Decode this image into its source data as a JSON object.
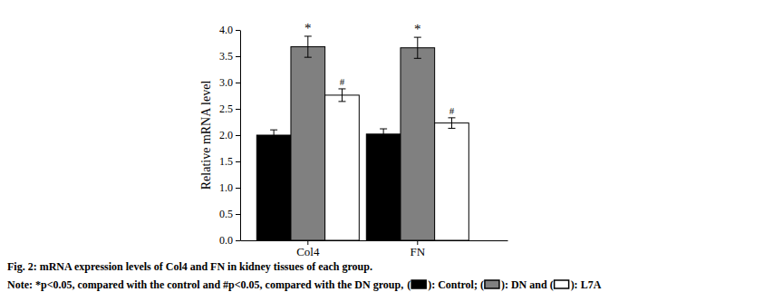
{
  "chart_data": {
    "type": "bar",
    "caption": "Fig. 2: mRNA expression levels of Col4 and FN in kidney tissues of each group.",
    "note": "Note: *p<0.05, compared with the control and #p<0.05, compared with the DN group,",
    "legend_punctuation": {
      "open": "(",
      "close": "): ",
      "separators": [
        "; ",
        " and "
      ]
    },
    "y_label": "Relative mRNA level",
    "categories": [
      "Col4",
      "FN"
    ],
    "series": [
      {
        "name": "Control",
        "color": "#000000",
        "values": [
          2.0,
          2.02
        ],
        "errors": [
          0.1,
          0.1
        ]
      },
      {
        "name": "DN",
        "color": "#808080",
        "values": [
          3.68,
          3.66
        ],
        "errors": [
          0.2,
          0.2
        ],
        "significance": [
          "*",
          "*"
        ]
      },
      {
        "name": "L7A",
        "color": "#ffffff",
        "values": [
          2.76,
          2.23
        ],
        "errors": [
          0.12,
          0.1
        ],
        "significance": [
          "#",
          "#"
        ]
      }
    ],
    "ylim": [
      0,
      4.0
    ],
    "yticks": [
      {
        "value": 0,
        "label": "0.0"
      },
      {
        "value": 0.5,
        "label": "0.5"
      },
      {
        "value": 1.0,
        "label": "1.0"
      },
      {
        "value": 1.5,
        "label": "1.5"
      },
      {
        "value": 2.0,
        "label": "2.0"
      },
      {
        "value": 2.5,
        "label": "2.5"
      },
      {
        "value": 3.0,
        "label": "3.0"
      },
      {
        "value": 3.5,
        "label": "3.5"
      },
      {
        "value": 4.0,
        "label": "4.0"
      }
    ],
    "grid": false
  }
}
